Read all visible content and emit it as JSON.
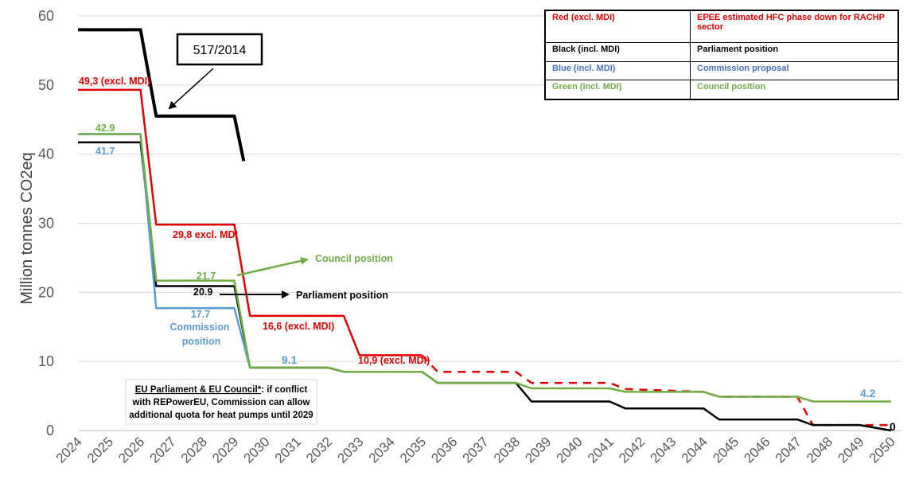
{
  "chart_data": {
    "type": "line",
    "title": "",
    "ylabel": "Million tonnes CO2eq",
    "xlabel": "",
    "ylim": [
      0,
      60
    ],
    "yticks": [
      "0",
      "10",
      "20",
      "30",
      "40",
      "50",
      "60"
    ],
    "x": [
      "2024",
      "2025",
      "2026",
      "2027",
      "2028",
      "2029",
      "2030",
      "2031",
      "2032",
      "2033",
      "2034",
      "2035",
      "2036",
      "2037",
      "2038",
      "2039",
      "2040",
      "2041",
      "2042",
      "2043",
      "2044",
      "2045",
      "2046",
      "2047",
      "2048",
      "2049",
      "2050"
    ],
    "grid": "horizontal",
    "series": [
      {
        "name": "517/2014",
        "color": "#000000",
        "width": 4,
        "points": [
          [
            2024,
            58
          ],
          [
            2026,
            58
          ],
          [
            2026.5,
            45.5
          ],
          [
            2029,
            45.5
          ],
          [
            2029.3,
            39
          ]
        ]
      },
      {
        "name": "Red (excl. MDI)",
        "color": "#e00000",
        "width": 2.5,
        "points": [
          [
            2024,
            49.3
          ],
          [
            2026,
            49.3
          ],
          [
            2026.5,
            29.8
          ],
          [
            2029,
            29.8
          ],
          [
            2029.5,
            16.6
          ],
          [
            2031,
            16.6
          ],
          [
            2032.5,
            16.6
          ],
          [
            2033,
            10.9
          ],
          [
            2035,
            10.9
          ]
        ]
      },
      {
        "name": "Red (excl. MDI) dashed",
        "color": "#e00000",
        "width": 2.5,
        "dashed": true,
        "points": [
          [
            2035,
            10.9
          ],
          [
            2035.5,
            8.5
          ],
          [
            2038,
            8.5
          ],
          [
            2038.5,
            6.9
          ],
          [
            2041,
            6.9
          ],
          [
            2041.5,
            6.0
          ],
          [
            2044,
            5.6
          ],
          [
            2044.5,
            4.9
          ],
          [
            2047,
            4.9
          ],
          [
            2047.5,
            0.8
          ],
          [
            2050,
            0.8
          ]
        ]
      },
      {
        "name": "Black (incl. MDI)",
        "color": "#000000",
        "width": 2.5,
        "points": [
          [
            2024,
            41.7
          ],
          [
            2026,
            41.7
          ],
          [
            2026.5,
            20.9
          ],
          [
            2029,
            20.9
          ],
          [
            2029.5,
            9.1
          ],
          [
            2032,
            9.1
          ],
          [
            2032.5,
            8.5
          ],
          [
            2035,
            8.5
          ],
          [
            2035.5,
            6.9
          ],
          [
            2038,
            6.9
          ],
          [
            2038.5,
            4.2
          ],
          [
            2041,
            4.2
          ],
          [
            2041.5,
            3.2
          ],
          [
            2044,
            3.2
          ],
          [
            2044.5,
            1.6
          ],
          [
            2047,
            1.6
          ],
          [
            2047.5,
            0.8
          ],
          [
            2049,
            0.8
          ],
          [
            2050,
            0
          ]
        ]
      },
      {
        "name": "Blue (incl. MDI)",
        "color": "#5b9bd5",
        "width": 2.5,
        "points": [
          [
            2024,
            42.9
          ],
          [
            2026,
            42.9
          ],
          [
            2026.5,
            17.7
          ],
          [
            2029,
            17.7
          ],
          [
            2029.5,
            9.1
          ],
          [
            2030,
            9.1
          ]
        ]
      },
      {
        "name": "Green (incl. MDI)",
        "color": "#70ad47",
        "width": 2.5,
        "points": [
          [
            2024,
            42.9
          ],
          [
            2026,
            42.9
          ],
          [
            2026.5,
            21.7
          ],
          [
            2029,
            21.7
          ],
          [
            2029.5,
            9.1
          ],
          [
            2032,
            9.1
          ],
          [
            2032.5,
            8.5
          ],
          [
            2035,
            8.5
          ],
          [
            2035.5,
            6.9
          ],
          [
            2038,
            6.9
          ],
          [
            2038.5,
            6.1
          ],
          [
            2041,
            6.1
          ],
          [
            2041.5,
            5.6
          ],
          [
            2044,
            5.6
          ],
          [
            2044.5,
            4.9
          ],
          [
            2047,
            4.9
          ],
          [
            2047.5,
            4.2
          ],
          [
            2050,
            4.2
          ]
        ]
      }
    ],
    "annotations": [
      {
        "text": "49,3 (excl. MDI)",
        "color": "#e00000"
      },
      {
        "text": "42.9",
        "color": "#70ad47"
      },
      {
        "text": "41.7",
        "color": "#5b9bd5"
      },
      {
        "text": "29,8 excl. MDI",
        "color": "#e00000"
      },
      {
        "text": "21.7",
        "color": "#70ad47"
      },
      {
        "text": "20.9",
        "color": "#000000"
      },
      {
        "text": "17.7",
        "color": "#5b9bd5"
      },
      {
        "text": "Commission",
        "color": "#5b9bd5"
      },
      {
        "text": "position",
        "color": "#5b9bd5"
      },
      {
        "text": "Council position",
        "color": "#70ad47"
      },
      {
        "text": "Parliament position",
        "color": "#000000"
      },
      {
        "text": "16,6 (excl. MDI)",
        "color": "#e00000"
      },
      {
        "text": "9.1",
        "color": "#5b9bd5"
      },
      {
        "text": "10,9 (excl. MDI)",
        "color": "#e00000"
      },
      {
        "text": "4.2",
        "color": "#5b9bd5"
      },
      {
        "text": "0",
        "color": "#000000"
      }
    ],
    "callout": "517/2014",
    "note": {
      "line1_underlined": "EU Parliament & EU Council*",
      "line1_rest": ": if conflict",
      "line2": "with REPowerEU, Commission can allow",
      "line3": "additional quota for heat pumps until 2029"
    },
    "legend": {
      "placement": "top-right",
      "rows": [
        {
          "key": "Red (excl. MDI)",
          "value": "EPEE estimated HFC phase down for RACHP sector",
          "color": "#e00000"
        },
        {
          "key": "Black (incl. MDI)",
          "value": "Parliament position",
          "color": "#000000"
        },
        {
          "key": "Blue (incl. MDI)",
          "value": "Commission proposal",
          "color": "#4472c4"
        },
        {
          "key": "Green (incl. MDI)",
          "value": "Council position",
          "color": "#70ad47"
        }
      ]
    }
  }
}
